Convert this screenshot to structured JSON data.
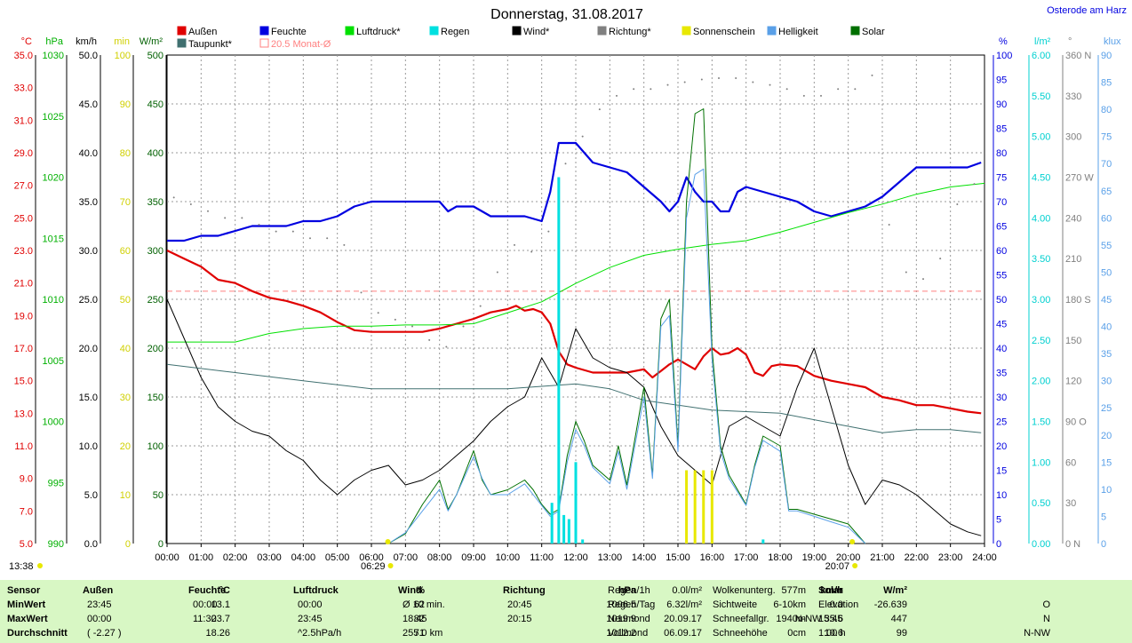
{
  "title": "Donnerstag, 31.08.2017",
  "location": "Osterode am Harz",
  "legend": [
    {
      "label": "Außen",
      "color": "#e00000"
    },
    {
      "label": "Feuchte",
      "color": "#0000e0"
    },
    {
      "label": "Luftdruck*",
      "color": "#00e000"
    },
    {
      "label": "Regen",
      "color": "#00e0e0"
    },
    {
      "label": "Wind*",
      "color": "#000000"
    },
    {
      "label": "Richtung*",
      "color": "#808080"
    },
    {
      "label": "Sonnenschein",
      "color": "#e8e800"
    },
    {
      "label": "Helligkeit",
      "color": "#5aa0e8"
    },
    {
      "label": "Solar",
      "color": "#007000"
    },
    {
      "label": "Taupunkt*",
      "color": "#407070"
    },
    {
      "label": "20.5 Monat-Ø",
      "color": "#ff8080"
    }
  ],
  "left_axes": [
    {
      "unit": "°C",
      "color": "#e00000",
      "ticks": [
        "35.0",
        "33.0",
        "31.0",
        "29.0",
        "27.0",
        "25.0",
        "23.0",
        "21.0",
        "19.0",
        "17.0",
        "15.0",
        "13.0",
        "11.0",
        "9.0",
        "7.0",
        "5.0"
      ]
    },
    {
      "unit": "hPa",
      "color": "#00b000",
      "ticks": [
        "1030",
        "1025",
        "1020",
        "1015",
        "1010",
        "1005",
        "1000",
        "995",
        "990"
      ]
    },
    {
      "unit": "km/h",
      "color": "#000000",
      "ticks": [
        "50.0",
        "45.0",
        "40.0",
        "35.0",
        "30.0",
        "25.0",
        "20.0",
        "15.0",
        "10.0",
        "5.0",
        "0.0"
      ]
    },
    {
      "unit": "min",
      "color": "#d0d000",
      "ticks": [
        "100",
        "90",
        "80",
        "70",
        "60",
        "50",
        "40",
        "30",
        "20",
        "10",
        "0"
      ]
    },
    {
      "unit": "W/m²",
      "color": "#006000",
      "ticks": [
        "500",
        "450",
        "400",
        "350",
        "300",
        "250",
        "200",
        "150",
        "100",
        "50",
        "0"
      ]
    }
  ],
  "right_axes": [
    {
      "unit": "%",
      "color": "#0000e0",
      "ticks": [
        "100",
        "95",
        "90",
        "85",
        "80",
        "75",
        "70",
        "65",
        "60",
        "55",
        "50",
        "45",
        "40",
        "35",
        "30",
        "25",
        "20",
        "15",
        "10",
        "5",
        "0"
      ]
    },
    {
      "unit": "l/m²",
      "color": "#00d0d0",
      "ticks": [
        "6.00",
        "5.50",
        "5.00",
        "4.50",
        "4.00",
        "3.50",
        "3.00",
        "2.50",
        "2.00",
        "1.50",
        "1.00",
        "0.50",
        "0.00"
      ]
    },
    {
      "unit": "°",
      "color": "#808080",
      "ticks": [
        "360 N",
        "330",
        "300",
        "270 W",
        "240",
        "210",
        "180 S",
        "150",
        "120",
        "90 O",
        "60",
        "30",
        "0 N"
      ]
    },
    {
      "unit": "klux",
      "color": "#5aa0e8",
      "ticks": [
        "90",
        "85",
        "80",
        "75",
        "70",
        "65",
        "60",
        "55",
        "50",
        "45",
        "40",
        "35",
        "30",
        "25",
        "20",
        "15",
        "10",
        "5",
        "0"
      ]
    }
  ],
  "x_ticks": [
    "00:00",
    "01:00",
    "02:00",
    "03:00",
    "04:00",
    "05:00",
    "06:00",
    "07:00",
    "08:00",
    "09:00",
    "10:00",
    "11:00",
    "12:00",
    "13:00",
    "14:00",
    "15:00",
    "16:00",
    "17:00",
    "18:00",
    "19:00",
    "20:00",
    "21:00",
    "22:00",
    "23:00",
    "24:00"
  ],
  "markers": {
    "sunrise": "06:29",
    "sunset": "20:07",
    "left_time": "13:38"
  },
  "chart_data": {
    "type": "line",
    "title": "Donnerstag, 31.08.2017",
    "x_unit": "hours",
    "xlim": [
      0,
      24
    ],
    "monthly_avg_temp": 20.5,
    "series": [
      {
        "name": "Außen",
        "unit": "°C",
        "axis": [
          5,
          35
        ],
        "x": [
          0,
          0.5,
          1,
          1.5,
          2,
          2.5,
          3,
          3.5,
          4,
          4.5,
          5,
          5.5,
          6,
          6.5,
          7,
          7.5,
          8,
          8.5,
          9,
          9.5,
          10,
          10.25,
          10.5,
          10.75,
          11,
          11.25,
          11.5,
          11.75,
          12,
          12.5,
          13,
          13.5,
          14,
          14.25,
          14.5,
          14.75,
          15,
          15.5,
          15.75,
          16,
          16.25,
          16.5,
          16.75,
          17,
          17.25,
          17.5,
          17.75,
          18,
          18.5,
          19,
          19.5,
          20,
          20.5,
          21,
          21.5,
          22,
          22.5,
          23,
          23.5,
          23.9
        ],
        "values": [
          23.0,
          22.5,
          22.0,
          21.2,
          21.0,
          20.5,
          20.1,
          19.9,
          19.6,
          19.2,
          18.6,
          18.1,
          18.0,
          18.0,
          18.0,
          18.0,
          18.2,
          18.5,
          18.8,
          19.2,
          19.4,
          19.6,
          19.3,
          19.4,
          19.2,
          18.5,
          16.8,
          16.0,
          15.8,
          15.5,
          15.5,
          15.5,
          15.7,
          15.2,
          15.6,
          16.0,
          16.3,
          15.7,
          16.5,
          17.0,
          16.6,
          16.7,
          17.0,
          16.6,
          15.5,
          15.3,
          15.9,
          16.0,
          15.9,
          15.3,
          15.0,
          14.8,
          14.6,
          14.0,
          13.8,
          13.5,
          13.5,
          13.3,
          13.1,
          13.0
        ]
      },
      {
        "name": "Feuchte",
        "unit": "%",
        "axis": [
          0,
          100
        ],
        "x": [
          0,
          0.5,
          1,
          1.5,
          2,
          2.5,
          3,
          3.5,
          4,
          4.5,
          5,
          5.5,
          6,
          6.5,
          7,
          7.5,
          8,
          8.25,
          8.5,
          9,
          9.5,
          10,
          10.5,
          11,
          11.25,
          11.5,
          12,
          12.5,
          13,
          13.5,
          14,
          14.5,
          14.75,
          15,
          15.25,
          15.5,
          15.75,
          16,
          16.25,
          16.5,
          16.75,
          17,
          17.5,
          18,
          18.5,
          19,
          19.5,
          20,
          20.5,
          21,
          21.5,
          22,
          22.5,
          23,
          23.5,
          23.9
        ],
        "values": [
          62,
          62,
          63,
          63,
          64,
          65,
          65,
          65,
          66,
          66,
          67,
          69,
          70,
          70,
          70,
          70,
          70,
          68,
          69,
          69,
          67,
          67,
          67,
          66,
          72,
          82,
          82,
          78,
          77,
          76,
          73,
          70,
          68,
          70,
          75,
          72,
          70,
          70,
          68,
          68,
          72,
          73,
          72,
          71,
          70,
          68,
          67,
          68,
          69,
          71,
          74,
          77,
          77,
          77,
          77,
          78
        ]
      },
      {
        "name": "Luftdruck*",
        "unit": "hPa",
        "axis": [
          990,
          1030
        ],
        "x": [
          0,
          1,
          2,
          3,
          4,
          5,
          6,
          7,
          8,
          9,
          10,
          11,
          12,
          13,
          14,
          15,
          16,
          17,
          18,
          19,
          20,
          21,
          22,
          23,
          24
        ],
        "values": [
          1006.5,
          1006.5,
          1006.5,
          1007.2,
          1007.6,
          1007.8,
          1007.8,
          1007.9,
          1007.9,
          1008.0,
          1008.9,
          1009.8,
          1011.3,
          1012.6,
          1013.6,
          1014.1,
          1014.5,
          1014.8,
          1015.5,
          1016.3,
          1017.1,
          1017.8,
          1018.6,
          1019.2,
          1019.5
        ]
      },
      {
        "name": "Wind*",
        "unit": "km/h",
        "axis": [
          0,
          50
        ],
        "x": [
          0,
          0.5,
          1,
          1.5,
          2,
          2.5,
          3,
          3.5,
          4,
          4.5,
          5,
          5.5,
          6,
          6.5,
          7,
          7.5,
          8,
          8.5,
          9,
          9.5,
          10,
          10.5,
          11,
          11.5,
          12,
          12.5,
          13,
          13.5,
          14,
          14.5,
          15,
          15.5,
          16,
          16.5,
          17,
          17.5,
          18,
          18.5,
          19,
          19.5,
          20,
          20.5,
          21,
          21.5,
          22,
          22.5,
          23,
          23.5,
          23.9
        ],
        "values": [
          25.0,
          21.0,
          17.0,
          14.0,
          12.5,
          11.5,
          11.0,
          9.5,
          8.5,
          6.5,
          5.0,
          6.5,
          7.5,
          8.0,
          6.0,
          6.5,
          7.5,
          9.0,
          10.5,
          12.5,
          14.0,
          15.0,
          19.0,
          16.0,
          22.0,
          19.0,
          18.0,
          17.5,
          16.0,
          12.0,
          9.0,
          7.5,
          6.0,
          12.0,
          13.0,
          12.0,
          11.0,
          16.0,
          20.0,
          14.0,
          8.0,
          4.0,
          6.5,
          6.0,
          5.0,
          3.5,
          2.0,
          1.2,
          0.8
        ]
      },
      {
        "name": "Taupunkt*",
        "unit": "°C",
        "axis": [
          5,
          35
        ],
        "x": [
          0,
          2,
          4,
          6,
          8,
          10,
          12,
          13,
          14,
          16,
          18,
          20,
          21,
          22,
          23,
          23.9
        ],
        "values": [
          16.0,
          15.5,
          15.0,
          14.5,
          14.5,
          14.5,
          14.8,
          14.5,
          13.8,
          13.2,
          13.0,
          12.2,
          11.8,
          12.0,
          12.0,
          11.8
        ]
      },
      {
        "name": "Solar",
        "unit": "W/m²",
        "axis": [
          0,
          500
        ],
        "x": [
          6.5,
          7,
          7.5,
          8,
          8.25,
          8.5,
          9,
          9.25,
          9.5,
          10,
          10.5,
          10.75,
          11,
          11.25,
          11.5,
          11.75,
          12,
          12.25,
          12.5,
          13,
          13.25,
          13.5,
          14,
          14.25,
          14.5,
          14.75,
          15,
          15.25,
          15.5,
          15.75,
          16,
          16.25,
          16.5,
          17,
          17.25,
          17.5,
          18,
          18.25,
          18.5,
          19,
          19.5,
          20,
          20.5
        ],
        "values": [
          0,
          10,
          40,
          65,
          35,
          50,
          95,
          65,
          50,
          55,
          65,
          55,
          40,
          30,
          35,
          90,
          125,
          105,
          80,
          65,
          100,
          60,
          160,
          70,
          230,
          250,
          100,
          350,
          440,
          445,
          200,
          100,
          70,
          40,
          80,
          110,
          100,
          35,
          35,
          30,
          25,
          20,
          0
        ]
      },
      {
        "name": "Helligkeit",
        "unit": "klux",
        "axis": [
          0,
          90
        ],
        "x": [
          6.5,
          7,
          7.5,
          8,
          8.25,
          8.5,
          9,
          9.25,
          9.5,
          10,
          10.5,
          10.75,
          11,
          11.25,
          11.5,
          11.75,
          12,
          12.25,
          12.5,
          13,
          13.25,
          13.5,
          14,
          14.25,
          14.5,
          14.75,
          15,
          15.25,
          15.5,
          15.75,
          16,
          16.25,
          16.5,
          17,
          17.25,
          17.5,
          18,
          18.25,
          18.5,
          19,
          19.5,
          20,
          20.5
        ],
        "values": [
          0,
          2,
          6,
          10,
          6,
          9,
          16,
          12,
          9,
          9,
          11,
          9,
          7,
          5,
          6,
          15,
          21,
          18,
          14,
          11,
          17,
          10,
          27,
          12,
          40,
          42,
          17,
          60,
          68,
          69,
          34,
          17,
          12,
          7,
          14,
          19,
          17,
          6,
          6,
          5,
          4,
          3,
          0
        ]
      },
      {
        "name": "Richtung*",
        "unit": "°",
        "axis": [
          0,
          360
        ],
        "x": [
          0.2,
          0.7,
          1.2,
          1.7,
          2.2,
          2.7,
          3.2,
          3.7,
          4.2,
          4.7,
          5.2,
          5.7,
          6.2,
          6.7,
          7.2,
          7.7,
          8.2,
          8.7,
          9.2,
          9.7,
          10.2,
          10.7,
          11.2,
          11.7,
          12.2,
          12.7,
          13.2,
          13.7,
          14.2,
          14.7,
          15.2,
          15.7,
          16.2,
          16.7,
          17.2,
          17.7,
          18.2,
          18.7,
          19.2,
          19.7,
          20.2,
          20.7,
          21.2,
          21.7,
          22.2,
          22.7,
          23.2,
          23.7
        ],
        "values": [
          255,
          250,
          245,
          240,
          240,
          235,
          230,
          230,
          225,
          225,
          220,
          185,
          170,
          165,
          160,
          150,
          145,
          160,
          175,
          200,
          220,
          215,
          230,
          280,
          300,
          320,
          330,
          335,
          335,
          338,
          340,
          342,
          343,
          343,
          340,
          338,
          335,
          330,
          330,
          335,
          335,
          345,
          235,
          200,
          195,
          210,
          250,
          265
        ]
      },
      {
        "name": "Regen",
        "unit": "l/m²",
        "axis": [
          0,
          6
        ],
        "x": [
          11.3,
          11.5,
          11.65,
          11.8,
          12.0,
          12.2,
          17.5
        ],
        "values": [
          0.5,
          4.5,
          0.35,
          0.3,
          1.0,
          0.05,
          0.05
        ]
      },
      {
        "name": "Sonnenschein",
        "unit": "min",
        "axis": [
          0,
          100
        ],
        "x": [
          15.25,
          15.5,
          15.75,
          16.0
        ],
        "values": [
          15,
          15,
          15,
          15
        ]
      }
    ]
  },
  "footer": {
    "columns": [
      {
        "head": "Sensor",
        "rows": [
          "MinWert",
          "MaxWert",
          "Durchschnitt"
        ]
      },
      {
        "head": "Außen",
        "unit": "°C",
        "rows": [
          [
            "23:45",
            "13.1"
          ],
          [
            "00:00",
            "23.7"
          ],
          [
            "( -2.27 )",
            "18.26"
          ]
        ]
      },
      {
        "head": "Feuchte",
        "unit": "%",
        "rows": [
          [
            "00:00",
            "62"
          ],
          [
            "11:30",
            "82"
          ],
          [
            "",
            "71"
          ]
        ]
      },
      {
        "head": "Luftdruck",
        "unit": "hPa",
        "rows": [
          [
            "00:00",
            "1006.5"
          ],
          [
            "23:45",
            "1019.9"
          ],
          [
            "^2.5hPa/h",
            "1012.2"
          ]
        ]
      },
      {
        "head": "Wind",
        "unit": "km/h",
        "rows": [
          [
            "Ø 10 min.",
            "0.0"
          ],
          [
            "18:45",
            "N-NW 35.6"
          ],
          [
            "255.0 km",
            "10.6"
          ]
        ]
      },
      {
        "head": "Richtung",
        "rows": [
          [
            "20:45",
            "O"
          ],
          [
            "20:15",
            "N"
          ],
          [
            "",
            "N-NW"
          ]
        ]
      }
    ],
    "stats_a": [
      [
        "Regen/1h",
        "0.0l/m²"
      ],
      [
        "Regen/Tag",
        "6.32l/m²"
      ],
      [
        "Neumond",
        "20.09.17"
      ],
      [
        "Vollmond",
        "06.09.17"
      ]
    ],
    "stats_b": [
      [
        "Wolkenunterg.",
        "577m"
      ],
      [
        "Sichtweite",
        "6-10km"
      ],
      [
        "Schneefallgr.",
        "1940m"
      ],
      [
        "Schneehöhe",
        "0cm"
      ]
    ],
    "solar": {
      "head": "Solar",
      "unit": "W/m²",
      "rows": [
        [
          "Elevation",
          "-26.639"
        ],
        [
          "15:45",
          "447"
        ],
        [
          "1:00 h",
          "99"
        ]
      ]
    }
  }
}
